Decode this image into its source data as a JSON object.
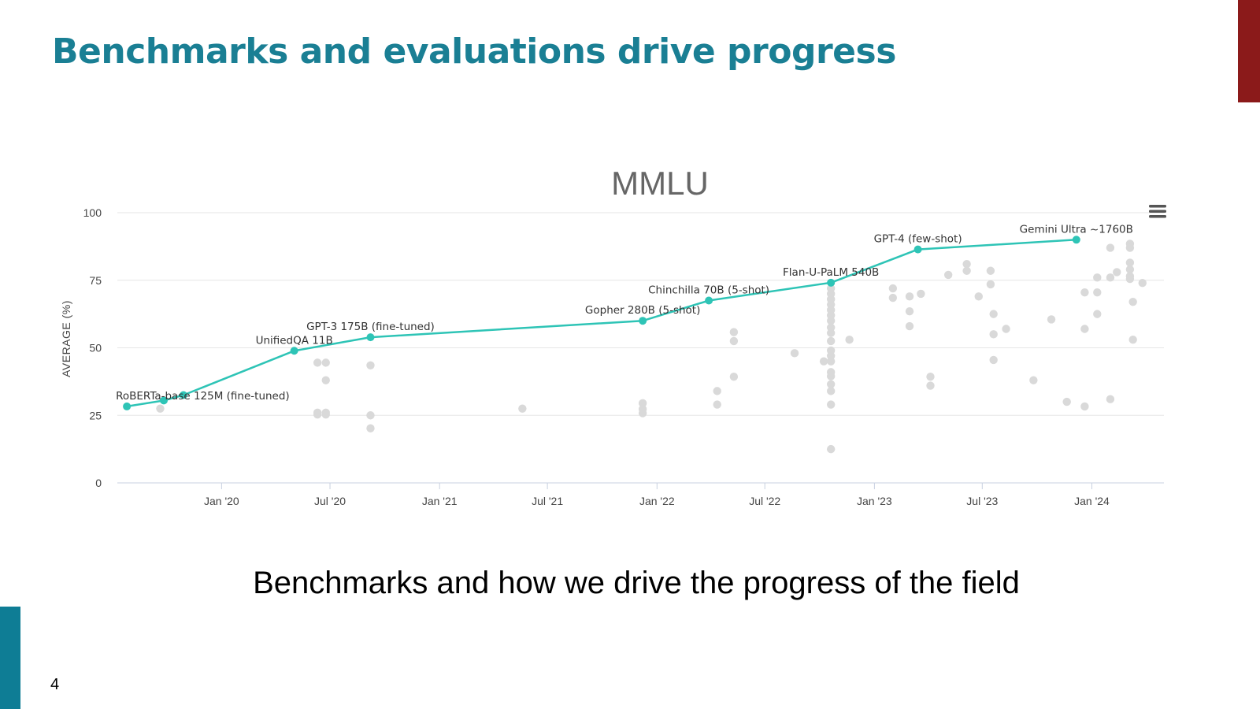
{
  "slide": {
    "title": "Benchmarks and evaluations drive progress",
    "caption": "Benchmarks and how we drive the progress of the field",
    "page_number": "4",
    "colors": {
      "title": "#1a7f94",
      "accent_top_right": "#8b1a1a",
      "accent_bottom_left": "#0e7d95"
    }
  },
  "chart_data": {
    "type": "scatter",
    "title": "MMLU",
    "ylabel": "AVERAGE (%)",
    "xlabel": "",
    "x_scale": "date",
    "xlim": [
      "2019-07-10",
      "2024-05-01"
    ],
    "ylim": [
      0,
      100
    ],
    "yticks": [
      0,
      25,
      50,
      75,
      100
    ],
    "xticks": [
      {
        "date": "2020-01-01",
        "label": "Jan '20"
      },
      {
        "date": "2020-07-01",
        "label": "Jul '20"
      },
      {
        "date": "2021-01-01",
        "label": "Jan '21"
      },
      {
        "date": "2021-07-01",
        "label": "Jul '21"
      },
      {
        "date": "2022-01-01",
        "label": "Jan '22"
      },
      {
        "date": "2022-07-01",
        "label": "Jul '22"
      },
      {
        "date": "2023-01-01",
        "label": "Jan '23"
      },
      {
        "date": "2023-07-01",
        "label": "Jul '23"
      },
      {
        "date": "2024-01-01",
        "label": "Jan '24"
      }
    ],
    "grid": true,
    "menu_icon": "hamburger-menu-icon",
    "series": [
      {
        "line_color": "#2ec4b6",
        "points": [
          {
            "x": "2019-07-26",
            "y": 28.3,
            "label": "RoBERTa-base 125M (fine-tuned)"
          },
          {
            "x": "2019-09-26",
            "y": 30.5
          },
          {
            "x": "2019-10-29",
            "y": 32.5
          },
          {
            "x": "2020-05-02",
            "y": 48.9,
            "label": "UnifiedQA 11B"
          },
          {
            "x": "2020-09-07",
            "y": 53.9,
            "label": "GPT-3 175B (fine-tuned)"
          },
          {
            "x": "2021-12-08",
            "y": 60.0,
            "label": "Gopher 280B (5-shot)"
          },
          {
            "x": "2022-03-29",
            "y": 67.5,
            "label": "Chinchilla 70B (5-shot)"
          },
          {
            "x": "2022-10-20",
            "y": 74.1,
            "label": "Flan-U-PaLM 540B"
          },
          {
            "x": "2023-03-15",
            "y": 86.4,
            "label": "GPT-4 (few-shot)"
          },
          {
            "x": "2023-12-06",
            "y": 90.0,
            "label": "Gemini Ultra ~1760B"
          }
        ]
      },
      {
        "point_color": "#d9d9d9",
        "points": [
          {
            "x": "2019-09-20",
            "y": 27.5
          },
          {
            "x": "2020-06-10",
            "y": 44.5
          },
          {
            "x": "2020-06-10",
            "y": 26.0
          },
          {
            "x": "2020-06-10",
            "y": 25.3
          },
          {
            "x": "2020-06-24",
            "y": 44.5
          },
          {
            "x": "2020-06-24",
            "y": 38.0
          },
          {
            "x": "2020-06-24",
            "y": 26.0
          },
          {
            "x": "2020-06-24",
            "y": 25.3
          },
          {
            "x": "2020-09-07",
            "y": 43.5
          },
          {
            "x": "2020-09-07",
            "y": 25.0
          },
          {
            "x": "2020-09-07",
            "y": 20.2
          },
          {
            "x": "2021-05-20",
            "y": 27.5
          },
          {
            "x": "2021-12-08",
            "y": 29.5
          },
          {
            "x": "2021-12-08",
            "y": 27.3
          },
          {
            "x": "2021-12-08",
            "y": 25.8
          },
          {
            "x": "2022-04-12",
            "y": 34.0
          },
          {
            "x": "2022-04-12",
            "y": 29.0
          },
          {
            "x": "2022-05-10",
            "y": 55.8
          },
          {
            "x": "2022-05-10",
            "y": 52.5
          },
          {
            "x": "2022-05-10",
            "y": 39.3
          },
          {
            "x": "2022-08-20",
            "y": 48.0
          },
          {
            "x": "2022-10-08",
            "y": 45.0
          },
          {
            "x": "2022-10-20",
            "y": 72.0
          },
          {
            "x": "2022-10-20",
            "y": 70.0
          },
          {
            "x": "2022-10-20",
            "y": 68.0
          },
          {
            "x": "2022-10-20",
            "y": 66.0
          },
          {
            "x": "2022-10-20",
            "y": 64.0
          },
          {
            "x": "2022-10-20",
            "y": 62.0
          },
          {
            "x": "2022-10-20",
            "y": 60.0
          },
          {
            "x": "2022-10-20",
            "y": 57.5
          },
          {
            "x": "2022-10-20",
            "y": 55.5
          },
          {
            "x": "2022-10-20",
            "y": 52.5
          },
          {
            "x": "2022-10-20",
            "y": 49.0
          },
          {
            "x": "2022-10-20",
            "y": 47.0
          },
          {
            "x": "2022-10-20",
            "y": 45.0
          },
          {
            "x": "2022-10-20",
            "y": 41.0
          },
          {
            "x": "2022-10-20",
            "y": 39.5
          },
          {
            "x": "2022-10-20",
            "y": 36.5
          },
          {
            "x": "2022-10-20",
            "y": 34.0
          },
          {
            "x": "2022-10-20",
            "y": 29.0
          },
          {
            "x": "2022-10-20",
            "y": 12.5
          },
          {
            "x": "2022-11-20",
            "y": 53.0
          },
          {
            "x": "2023-02-01",
            "y": 72.0
          },
          {
            "x": "2023-02-01",
            "y": 68.5
          },
          {
            "x": "2023-03-01",
            "y": 69.0
          },
          {
            "x": "2023-03-01",
            "y": 63.5
          },
          {
            "x": "2023-03-01",
            "y": 58.0
          },
          {
            "x": "2023-03-20",
            "y": 70.0
          },
          {
            "x": "2023-04-05",
            "y": 39.3
          },
          {
            "x": "2023-04-05",
            "y": 36.0
          },
          {
            "x": "2023-05-05",
            "y": 77.0
          },
          {
            "x": "2023-06-05",
            "y": 81.0
          },
          {
            "x": "2023-06-05",
            "y": 78.5
          },
          {
            "x": "2023-06-25",
            "y": 69.0
          },
          {
            "x": "2023-07-15",
            "y": 78.5
          },
          {
            "x": "2023-07-15",
            "y": 73.5
          },
          {
            "x": "2023-07-20",
            "y": 62.5
          },
          {
            "x": "2023-07-20",
            "y": 55.0
          },
          {
            "x": "2023-07-20",
            "y": 45.5
          },
          {
            "x": "2023-08-10",
            "y": 57.0
          },
          {
            "x": "2023-09-25",
            "y": 38.0
          },
          {
            "x": "2023-10-25",
            "y": 60.5
          },
          {
            "x": "2023-11-20",
            "y": 30.0
          },
          {
            "x": "2023-12-20",
            "y": 70.5
          },
          {
            "x": "2023-12-20",
            "y": 57.0
          },
          {
            "x": "2023-12-20",
            "y": 28.3
          },
          {
            "x": "2024-01-10",
            "y": 76.0
          },
          {
            "x": "2024-01-10",
            "y": 70.5
          },
          {
            "x": "2024-01-10",
            "y": 62.5
          },
          {
            "x": "2024-02-01",
            "y": 87.0
          },
          {
            "x": "2024-02-01",
            "y": 76.0
          },
          {
            "x": "2024-02-01",
            "y": 31.0
          },
          {
            "x": "2024-02-12",
            "y": 78.0
          },
          {
            "x": "2024-03-05",
            "y": 88.5
          },
          {
            "x": "2024-03-05",
            "y": 87.0
          },
          {
            "x": "2024-03-05",
            "y": 81.5
          },
          {
            "x": "2024-03-05",
            "y": 79.0
          },
          {
            "x": "2024-03-05",
            "y": 76.5
          },
          {
            "x": "2024-03-05",
            "y": 75.5
          },
          {
            "x": "2024-03-10",
            "y": 67.0
          },
          {
            "x": "2024-03-10",
            "y": 53.0
          },
          {
            "x": "2024-03-26",
            "y": 74.0
          }
        ]
      }
    ]
  }
}
